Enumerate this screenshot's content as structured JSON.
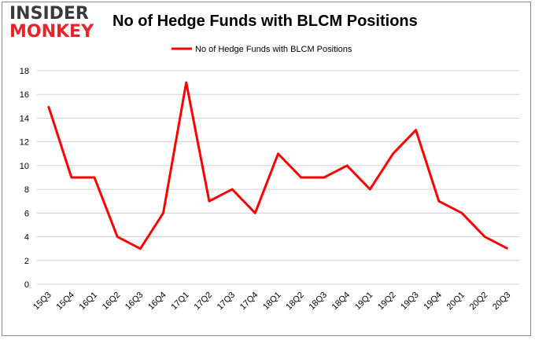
{
  "logo": {
    "line1": "INSIDER",
    "line2": "MONKEY"
  },
  "chart_data": {
    "type": "line",
    "title": "No of Hedge Funds with BLCM Positions",
    "xlabel": "",
    "ylabel": "",
    "categories": [
      "15Q3",
      "15Q4",
      "16Q1",
      "16Q2",
      "16Q3",
      "16Q4",
      "17Q1",
      "17Q2",
      "17Q3",
      "17Q4",
      "18Q1",
      "18Q2",
      "18Q3",
      "18Q4",
      "19Q1",
      "19Q2",
      "19Q3",
      "19Q4",
      "20Q1",
      "20Q2",
      "20Q3"
    ],
    "series": [
      {
        "name": "No of Hedge Funds with BLCM Positions",
        "color": "#ff0000",
        "values": [
          15,
          9,
          9,
          4,
          3,
          6,
          17,
          7,
          8,
          6,
          11,
          9,
          9,
          10,
          8,
          11,
          13,
          7,
          6,
          4,
          3
        ]
      }
    ],
    "ylim": [
      0,
      18
    ],
    "yticks": [
      0,
      2,
      4,
      6,
      8,
      10,
      12,
      14,
      16,
      18
    ],
    "grid": true,
    "legend": "top-center"
  }
}
